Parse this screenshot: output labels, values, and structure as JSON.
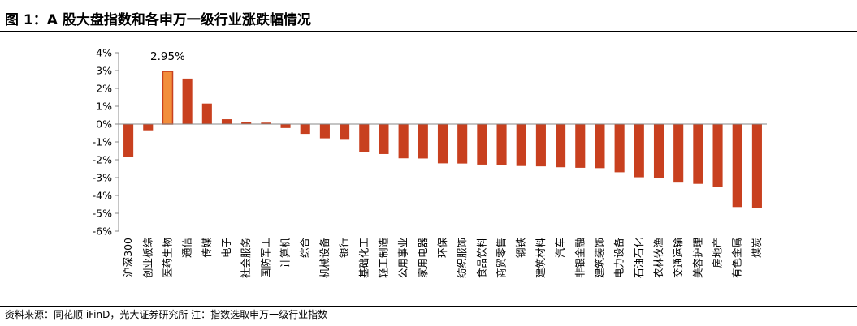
{
  "header": {
    "title": "图 1：A 股大盘指数和各申万一级行业涨跌幅情况"
  },
  "footer": {
    "source": "资料来源：同花顺 iFinD，光大证券研究所    注：指数选取申万一级行业指数"
  },
  "colors": {
    "bar": "#C8401F",
    "highlight": "#F28E3C",
    "highlight_stroke": "#C8401F"
  },
  "chart_data": {
    "type": "bar",
    "title": "",
    "xlabel": "",
    "ylabel": "",
    "ylim": [
      -6,
      4
    ],
    "yticks": [
      4,
      3,
      2,
      1,
      0,
      -1,
      -2,
      -3,
      -4,
      -5,
      -6
    ],
    "yticklabels": [
      "4%",
      "3%",
      "2%",
      "1%",
      "0%",
      "-1%",
      "-2%",
      "-3%",
      "-4%",
      "-5%",
      "-6%"
    ],
    "grid": false,
    "highlight_index": 2,
    "data_labels": [
      {
        "index": 2,
        "text": "2.95%"
      }
    ],
    "categories": [
      "沪深300",
      "创业板综",
      "医药生物",
      "通信",
      "传媒",
      "电子",
      "社会服务",
      "国防军工",
      "计算机",
      "综合",
      "机械设备",
      "银行",
      "基础化工",
      "轻工制造",
      "公用事业",
      "家用电器",
      "环保",
      "纺织服饰",
      "食品饮料",
      "商贸零售",
      "钢铁",
      "建筑材料",
      "汽车",
      "非银金融",
      "建筑装饰",
      "电力设备",
      "石油石化",
      "农林牧渔",
      "交通运输",
      "美容护理",
      "房地产",
      "有色金属",
      "煤炭"
    ],
    "values": [
      -1.82,
      -0.35,
      2.95,
      2.55,
      1.15,
      0.27,
      0.12,
      0.08,
      -0.22,
      -0.55,
      -0.8,
      -0.88,
      -1.55,
      -1.68,
      -1.92,
      -1.93,
      -2.2,
      -2.21,
      -2.27,
      -2.3,
      -2.35,
      -2.37,
      -2.42,
      -2.45,
      -2.47,
      -2.7,
      -2.98,
      -3.03,
      -3.28,
      -3.35,
      -3.52,
      -4.65,
      -4.72
    ]
  }
}
